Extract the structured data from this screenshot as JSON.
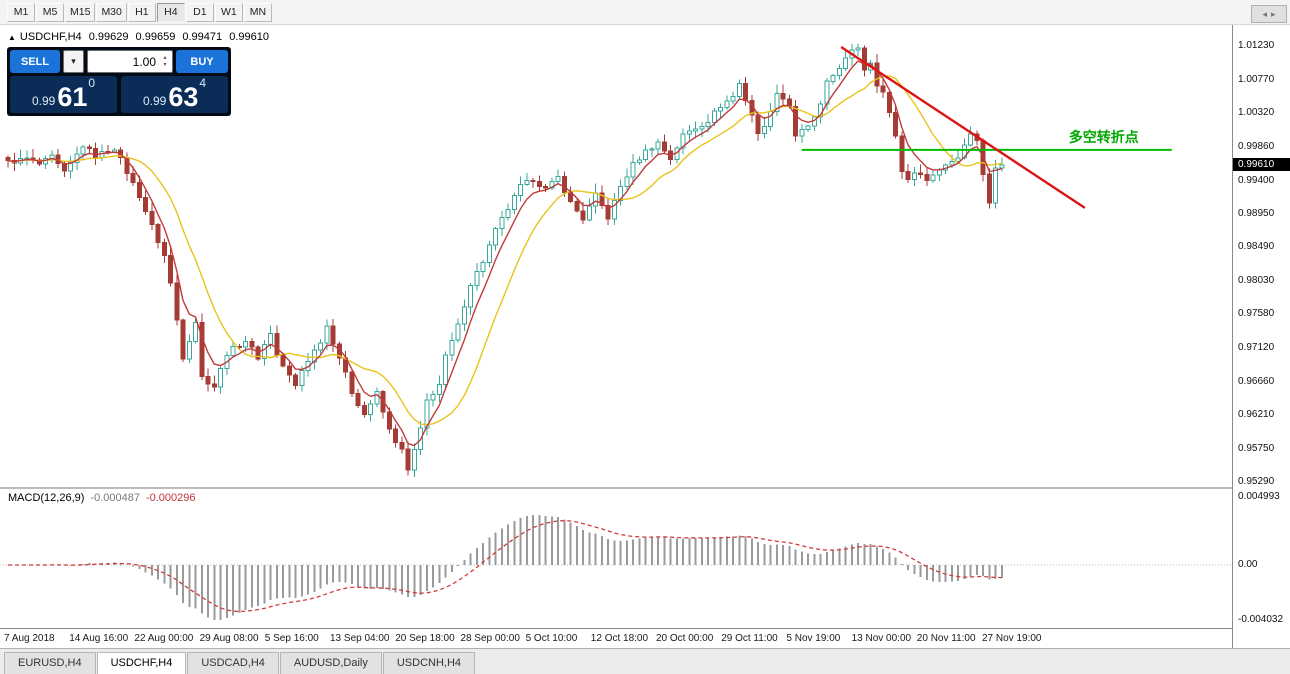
{
  "toolbar": {
    "timeframes": [
      {
        "label": "M1"
      },
      {
        "label": "M5"
      },
      {
        "label": "M15"
      },
      {
        "label": "M30"
      },
      {
        "label": "H1"
      },
      {
        "label": "H4",
        "active": true
      },
      {
        "label": "D1"
      },
      {
        "label": "W1"
      },
      {
        "label": "MN"
      }
    ]
  },
  "chart_header": {
    "symbol": "USDCHF,H4",
    "open": "0.99629",
    "high": "0.99659",
    "low": "0.99471",
    "close": "0.99610"
  },
  "trade_panel": {
    "sell_label": "SELL",
    "buy_label": "BUY",
    "lot_value": "1.00",
    "sell_price": {
      "small": "0.99",
      "big": "61",
      "sup": "0"
    },
    "buy_price": {
      "small": "0.99",
      "big": "63",
      "sup": "4"
    }
  },
  "macd_header": {
    "label": "MACD(12,26,9)",
    "value": "-0.000487",
    "signal": "-0.000296"
  },
  "tabs": [
    {
      "label": "EURUSD,H4"
    },
    {
      "label": "USDCHF,H4",
      "active": true
    },
    {
      "label": "USDCAD,H4"
    },
    {
      "label": "AUDUSD,Daily"
    },
    {
      "label": "USDCNH,H4"
    }
  ],
  "icons": {
    "collapse": "▲",
    "chevron_down": "▾",
    "spin_up": "▴",
    "spin_down": "▾",
    "tab_scroll_left": "◂",
    "tab_scroll_right": "▸"
  },
  "chart_data": {
    "type": "candlestick",
    "symbol": "USDCHF",
    "timeframe": "H4",
    "bull_color": "#3aa79b",
    "bear_color": "#a53b35",
    "ma_fast": {
      "period": 5,
      "color": "#c03a3a"
    },
    "ma_slow": {
      "period": 12,
      "color": "#e9c31c"
    },
    "price_axis": {
      "ticks": [
        "1.01230",
        "1.00770",
        "1.00320",
        "0.99860",
        "0.99400",
        "0.98950",
        "0.98490",
        "0.98030",
        "0.97580",
        "0.97120",
        "0.96660",
        "0.96210",
        "0.95750",
        "0.95290"
      ],
      "current": "0.99610"
    },
    "time_axis": [
      "7 Aug 2018",
      "14 Aug 16:00",
      "22 Aug 00:00",
      "29 Aug 08:00",
      "5 Sep 16:00",
      "13 Sep 04:00",
      "20 Sep 18:00",
      "28 Sep 00:00",
      "5 Oct 10:00",
      "12 Oct 18:00",
      "20 Oct 00:00",
      "29 Oct 11:00",
      "5 Nov 19:00",
      "13 Nov 00:00",
      "20 Nov 11:00",
      "27 Nov 19:00"
    ],
    "candle_count": 160,
    "price_path": [
      [
        0,
        0.9965
      ],
      [
        3,
        0.997
      ],
      [
        5,
        0.9962
      ],
      [
        7,
        0.9972
      ],
      [
        9,
        0.995
      ],
      [
        12,
        0.9988
      ],
      [
        14,
        0.9974
      ],
      [
        17,
        0.9985
      ],
      [
        19,
        0.9952
      ],
      [
        21,
        0.992
      ],
      [
        23,
        0.9878
      ],
      [
        25,
        0.9838
      ],
      [
        26,
        0.98
      ],
      [
        28,
        0.97
      ],
      [
        30,
        0.9748
      ],
      [
        31,
        0.9672
      ],
      [
        33,
        0.966
      ],
      [
        35,
        0.9705
      ],
      [
        38,
        0.9722
      ],
      [
        40,
        0.97
      ],
      [
        42,
        0.9733
      ],
      [
        43,
        0.9702
      ],
      [
        46,
        0.966
      ],
      [
        47,
        0.9682
      ],
      [
        50,
        0.9722
      ],
      [
        51,
        0.9742
      ],
      [
        53,
        0.97
      ],
      [
        55,
        0.9652
      ],
      [
        57,
        0.9622
      ],
      [
        59,
        0.965
      ],
      [
        61,
        0.96
      ],
      [
        63,
        0.9572
      ],
      [
        64,
        0.9545
      ],
      [
        66,
        0.96
      ],
      [
        67,
        0.964
      ],
      [
        69,
        0.9662
      ],
      [
        70,
        0.97
      ],
      [
        72,
        0.9742
      ],
      [
        74,
        0.98
      ],
      [
        76,
        0.983
      ],
      [
        78,
        0.9872
      ],
      [
        80,
        0.9902
      ],
      [
        82,
        0.9932
      ],
      [
        84,
        0.9942
      ],
      [
        86,
        0.9928
      ],
      [
        88,
        0.9944
      ],
      [
        90,
        0.991
      ],
      [
        92,
        0.9888
      ],
      [
        94,
        0.992
      ],
      [
        96,
        0.989
      ],
      [
        98,
        0.9932
      ],
      [
        100,
        0.9962
      ],
      [
        102,
        0.998
      ],
      [
        104,
        0.9992
      ],
      [
        106,
        0.997
      ],
      [
        108,
        1.0002
      ],
      [
        110,
        1.0012
      ],
      [
        112,
        1.0022
      ],
      [
        114,
        1.0042
      ],
      [
        116,
        1.0055
      ],
      [
        117,
        1.0072
      ],
      [
        119,
        1.003
      ],
      [
        120,
        1.0002
      ],
      [
        122,
        1.0032
      ],
      [
        123,
        1.0062
      ],
      [
        125,
        1.0042
      ],
      [
        126,
        1.0002
      ],
      [
        128,
        1.0012
      ],
      [
        130,
        1.0042
      ],
      [
        131,
        1.0072
      ],
      [
        133,
        1.0095
      ],
      [
        135,
        1.0115
      ],
      [
        136,
        1.0122
      ],
      [
        137,
        1.0092
      ],
      [
        138,
        1.0102
      ],
      [
        139,
        1.0072
      ],
      [
        140,
        1.006
      ],
      [
        142,
        1.0002
      ],
      [
        143,
        0.9952
      ],
      [
        144,
        0.9944
      ],
      [
        146,
        0.9952
      ],
      [
        147,
        0.994
      ],
      [
        149,
        0.9956
      ],
      [
        150,
        0.9962
      ],
      [
        152,
        0.9972
      ],
      [
        153,
        0.9992
      ],
      [
        154,
        1.0002
      ],
      [
        155,
        0.9996
      ],
      [
        156,
        0.995
      ],
      [
        157,
        0.9908
      ],
      [
        158,
        0.9958
      ],
      [
        159,
        0.9961
      ]
    ],
    "annotations": {
      "trendline": {
        "color": "#dd1414",
        "from_index": 133.3,
        "from_price": 1.0122,
        "to_index": 172.3,
        "to_price": 0.9903
      },
      "hline": {
        "color": "#00bd00",
        "price": 0.9982,
        "from_index": 127,
        "to_index": 186.2
      },
      "label": {
        "text": "多空转折点",
        "color": "#00a800"
      }
    },
    "macd": {
      "params": "12,26,9",
      "axis_ticks": [
        "0.004993",
        "0.00",
        "-0.004032"
      ],
      "histogram_color": "#9a9a9a",
      "signal_color": "#d03a3a"
    }
  }
}
